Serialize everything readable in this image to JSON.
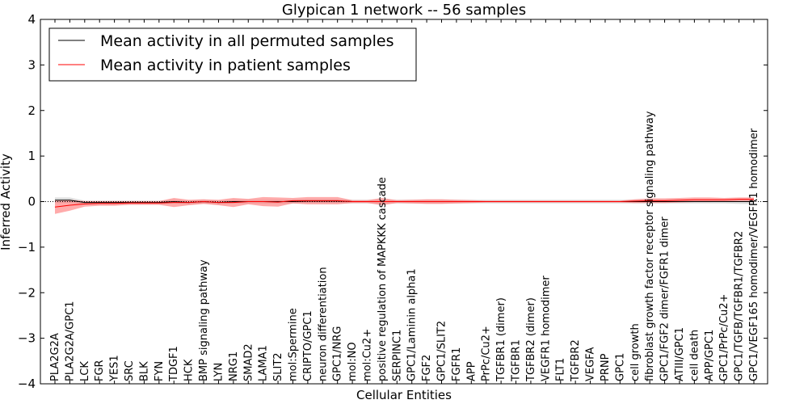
{
  "chart_data": {
    "type": "line",
    "title": "Glypican 1 network -- 56 samples",
    "xlabel": "Cellular Entities",
    "ylabel": "Inferred Activity",
    "ylim": [
      -4,
      4
    ],
    "yticks": [
      4,
      3,
      2,
      1,
      0,
      -1,
      -2,
      -3,
      -4
    ],
    "ytick_labels": [
      "4",
      "3",
      "2",
      "1",
      "0",
      "−1",
      "−2",
      "−3",
      "−4"
    ],
    "legend": {
      "placement": "top-left",
      "entries": [
        {
          "label": "Mean activity in all permuted samples",
          "color": "#000000"
        },
        {
          "label": "Mean activity in patient samples",
          "color": "#ff0000"
        }
      ]
    },
    "categories": [
      "PLA2G2A",
      "PLA2G2A/GPC1",
      "LCK",
      "FGR",
      "YES1",
      "SRC",
      "BLK",
      "FYN",
      "TDGF1",
      "HCK",
      "BMP signaling pathway",
      "LYN",
      "NRG1",
      "SMAD2",
      "LAMA1",
      "SLIT2",
      "mol:Spermine",
      "CRIPTO/GPC1",
      "neuron differentiation",
      "GPC1/NRG",
      "mol:NO",
      "mol:Cu2+",
      "positive regulation of MAPKKK cascade",
      "SERPINC1",
      "GPC1/Laminin alpha1",
      "FGF2",
      "GPC1/SLIT2",
      "FGFR1",
      "APP",
      "PrPc/Cu2+",
      "TGFBR1 (dimer)",
      "TGFBR1",
      "TGFBR2 (dimer)",
      "VEGFR1 homodimer",
      "FLT1",
      "TGFBR2",
      "VEGFA",
      "PRNP",
      "GPC1",
      "cell growth",
      "fibroblast growth factor receptor signaling pathway",
      "GPC1/FGF2 dimer/FGFR1 dimer",
      "ATIII/GPC1",
      "cell death",
      "APP/GPC1",
      "GPC1/PrPc/Cu2+",
      "GPC1/TGFB/TGFBR1/TGFBR2",
      "GPC1/VEGF165 homodimer/VEGFR1 homodimer"
    ],
    "series": [
      {
        "name": "Mean activity in all permuted samples",
        "color": "#000000",
        "values": [
          0.03,
          0.03,
          -0.02,
          -0.02,
          -0.02,
          -0.02,
          -0.02,
          -0.02,
          0.0,
          -0.02,
          0.0,
          -0.02,
          0.0,
          0.0,
          0.0,
          0.0,
          0.0,
          0.01,
          0.01,
          0.01,
          0.0,
          0.0,
          0.0,
          0.0,
          0.0,
          0.0,
          0.0,
          0.0,
          0.0,
          0.0,
          0.0,
          0.0,
          0.0,
          0.0,
          0.0,
          0.0,
          0.0,
          0.0,
          0.0,
          0.0,
          0.0,
          0.0,
          0.0,
          0.0,
          0.0,
          0.0,
          0.0,
          0.0
        ],
        "band": [
          0.06,
          0.06,
          0.04,
          0.04,
          0.04,
          0.04,
          0.04,
          0.04,
          0.04,
          0.04,
          0.04,
          0.04,
          0.04,
          0.04,
          0.04,
          0.04,
          0.04,
          0.04,
          0.04,
          0.04,
          0.04,
          0.04,
          0.04,
          0.04,
          0.04,
          0.04,
          0.04,
          0.04,
          0.04,
          0.04,
          0.04,
          0.04,
          0.04,
          0.04,
          0.04,
          0.04,
          0.04,
          0.04,
          0.04,
          0.04,
          0.04,
          0.04,
          0.04,
          0.04,
          0.04,
          0.04,
          0.05,
          0.05
        ]
      },
      {
        "name": "Mean activity in patient samples",
        "color": "#ff0000",
        "values": [
          -0.12,
          -0.08,
          -0.05,
          -0.04,
          -0.04,
          -0.03,
          -0.03,
          -0.03,
          -0.02,
          -0.02,
          0.0,
          -0.02,
          -0.02,
          0.0,
          0.0,
          -0.01,
          0.02,
          0.02,
          0.02,
          0.02,
          0.0,
          0.0,
          0.0,
          0.0,
          0.0,
          0.0,
          0.0,
          0.0,
          0.0,
          0.0,
          0.0,
          0.0,
          0.0,
          0.0,
          0.0,
          0.0,
          0.0,
          0.0,
          0.0,
          0.01,
          0.02,
          0.02,
          0.03,
          0.04,
          0.04,
          0.04,
          0.05,
          0.05
        ],
        "band": [
          0.15,
          0.12,
          0.06,
          0.05,
          0.05,
          0.04,
          0.04,
          0.04,
          0.1,
          0.06,
          0.05,
          0.06,
          0.1,
          0.06,
          0.1,
          0.1,
          0.06,
          0.08,
          0.08,
          0.08,
          0.03,
          0.03,
          0.08,
          0.03,
          0.04,
          0.05,
          0.05,
          0.04,
          0.03,
          0.02,
          0.02,
          0.02,
          0.02,
          0.02,
          0.02,
          0.02,
          0.02,
          0.02,
          0.02,
          0.04,
          0.05,
          0.05,
          0.05,
          0.05,
          0.05,
          0.04,
          0.04,
          0.04
        ]
      }
    ]
  }
}
